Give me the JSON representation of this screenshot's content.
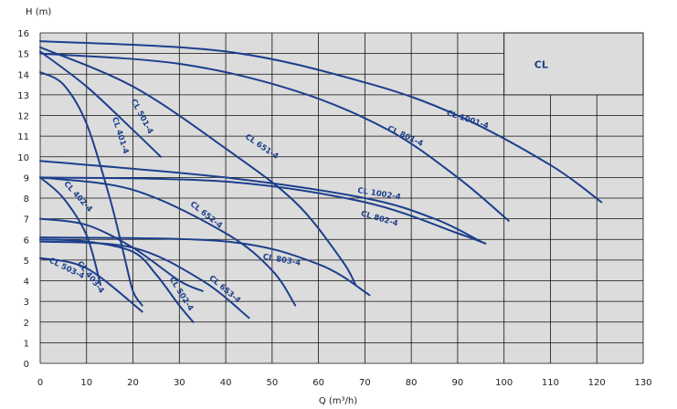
{
  "chart_data": {
    "type": "line",
    "title": "",
    "corner_label": "CL",
    "xlabel": "Q (m³/h)",
    "ylabel": "H (m)",
    "xlim": [
      0,
      130
    ],
    "ylim": [
      0,
      16
    ],
    "x_ticks": [
      "0",
      "10",
      "20",
      "30",
      "40",
      "50",
      "60",
      "70",
      "80",
      "90",
      "100",
      "110",
      "120",
      "130"
    ],
    "y_ticks": [
      "0",
      "1",
      "2",
      "3",
      "4",
      "5",
      "6",
      "7",
      "8",
      "9",
      "10",
      "11",
      "12",
      "13",
      "14",
      "15",
      "16"
    ],
    "grid": true,
    "colors": {
      "curve": "#1c3f8c",
      "plot_bg": "#dcdcdc",
      "grid": "#111111"
    },
    "series": [
      {
        "name": "CL 501-4",
        "x": [
          0,
          10,
          20,
          26
        ],
        "y": [
          15.1,
          13.4,
          11.3,
          10.0
        ],
        "label_at": [
          21.5,
          11.9
        ],
        "label_angle": 62
      },
      {
        "name": "CL 401-4",
        "x": [
          0,
          5,
          10,
          15,
          18,
          20,
          22
        ],
        "y": [
          14.1,
          13.5,
          11.6,
          8.0,
          5.3,
          3.5,
          2.8
        ],
        "label_at": [
          16.8,
          11.0
        ],
        "label_angle": 72
      },
      {
        "name": "CL 651-4",
        "x": [
          0,
          20,
          40,
          55,
          65,
          68
        ],
        "y": [
          15.3,
          13.4,
          10.4,
          7.8,
          5.0,
          3.8
        ],
        "label_at": [
          47.5,
          10.4
        ],
        "label_angle": 34
      },
      {
        "name": "CL 801-4",
        "x": [
          0,
          30,
          55,
          75,
          90,
          101
        ],
        "y": [
          15.0,
          14.5,
          13.2,
          11.3,
          9.0,
          6.9
        ],
        "label_at": [
          78.5,
          10.9
        ],
        "label_angle": 25
      },
      {
        "name": "CL 1001-4",
        "x": [
          0,
          40,
          70,
          90,
          110,
          121
        ],
        "y": [
          15.6,
          15.1,
          13.6,
          12.0,
          9.6,
          7.8
        ],
        "label_at": [
          92.0,
          11.7
        ],
        "label_angle": 18
      },
      {
        "name": "CL 1002-4",
        "x": [
          0,
          40,
          70,
          85,
          95
        ],
        "y": [
          9.8,
          9.0,
          8.0,
          7.0,
          5.9
        ],
        "label_at": [
          73.0,
          8.1
        ],
        "label_angle": 9
      },
      {
        "name": "CL 802-4",
        "x": [
          0,
          40,
          70,
          90,
          96
        ],
        "y": [
          9.0,
          8.8,
          7.8,
          6.3,
          5.8
        ],
        "label_at": [
          73.0,
          6.9
        ],
        "label_angle": 16
      },
      {
        "name": "CL 652-4",
        "x": [
          0,
          20,
          40,
          50,
          55
        ],
        "y": [
          9.0,
          8.4,
          6.3,
          4.5,
          2.8
        ],
        "label_at": [
          35.5,
          7.1
        ],
        "label_angle": 38
      },
      {
        "name": "CL 803-4",
        "x": [
          0,
          40,
          60,
          71
        ],
        "y": [
          6.1,
          5.9,
          4.8,
          3.3
        ],
        "label_at": [
          52.0,
          4.9
        ],
        "label_angle": 10
      },
      {
        "name": "CL 402-4",
        "x": [
          0,
          5,
          10,
          13
        ],
        "y": [
          9.0,
          8.0,
          6.2,
          3.8
        ],
        "label_at": [
          7.8,
          8.0
        ],
        "label_angle": 48
      },
      {
        "name": "CL 403-4",
        "x": [
          0,
          10,
          20,
          30,
          35
        ],
        "y": [
          7.0,
          6.7,
          5.6,
          4.0,
          3.5
        ],
        "label_at": [
          10.5,
          4.1
        ],
        "label_angle": 52
      },
      {
        "name": "CL 503-4",
        "x": [
          0,
          10,
          22
        ],
        "y": [
          5.1,
          4.6,
          2.5
        ],
        "label_at": [
          5.5,
          4.5
        ],
        "label_angle": 26
      },
      {
        "name": "CL 502-4",
        "x": [
          0,
          10,
          20,
          25,
          30,
          33
        ],
        "y": [
          6.0,
          5.9,
          5.4,
          4.3,
          2.8,
          2.0
        ],
        "label_at": [
          30.0,
          3.3
        ],
        "label_angle": 58
      },
      {
        "name": "CL 653-4",
        "x": [
          0,
          20,
          35,
          45
        ],
        "y": [
          5.9,
          5.6,
          4.0,
          2.2
        ],
        "label_at": [
          39.5,
          3.5
        ],
        "label_angle": 40
      }
    ]
  }
}
